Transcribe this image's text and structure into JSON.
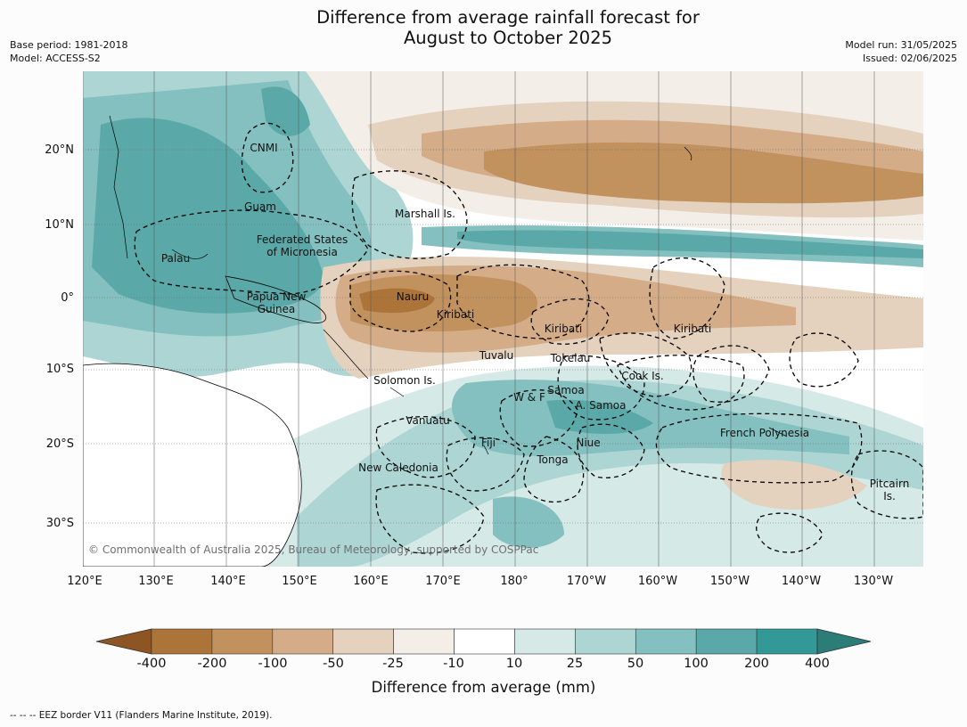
{
  "title_line1": "Difference from average rainfall forecast for",
  "title_line2": "August to October 2025",
  "base_period": "Base period: 1981-2018",
  "model": "Model: ACCESS-S2",
  "model_run": "Model run: 31/05/2025",
  "issued": "Issued: 02/06/2025",
  "copyright": "© Commonwealth of Australia 2025, Bureau of Meteorology, supported by COSPPac",
  "lat_labels": [
    "20°N",
    "10°N",
    "0°",
    "10°S",
    "20°S",
    "30°S"
  ],
  "lon_labels": [
    "120°E",
    "130°E",
    "140°E",
    "150°E",
    "160°E",
    "170°E",
    "180°",
    "170°W",
    "160°W",
    "150°W",
    "140°W",
    "130°W"
  ],
  "places": {
    "cnmi": "CNMI",
    "guam": "Guam",
    "marshall": "Marshall Is.",
    "fsm_1": "Federated States",
    "fsm_2": "of Micronesia",
    "palau": "Palau",
    "png_1": "Papua New",
    "png_2": "Guinea",
    "nauru": "Nauru",
    "kiribati_w": "Kiribati",
    "kiribati_c": "Kiribati",
    "kiribati_e": "Kiribati",
    "tuvalu": "Tuvalu",
    "tokelau": "Tokelau",
    "solomon": "Solomon Is.",
    "cook": "Cook Is.",
    "wf": "W & F",
    "samoa": "Samoa",
    "asamoa": "A. Samoa",
    "vanuatu": "Vanuatu",
    "fiji": "Fiji",
    "niue": "Niue",
    "tonga": "Tonga",
    "frenchpoly": "French Polynesia",
    "newcal": "New Caledonia",
    "pitcairn_1": "Pitcairn",
    "pitcairn_2": "Is."
  },
  "colorbar": {
    "ticks": [
      "-400",
      "-200",
      "-100",
      "-50",
      "-25",
      "-10",
      "10",
      "25",
      "50",
      "100",
      "200",
      "400"
    ],
    "colors": [
      "#8c5523",
      "#ad7439",
      "#c1915e",
      "#d4ad88",
      "#e4d2bf",
      "#f3eee7",
      "#ffffff",
      "#d5e9e7",
      "#acd5d3",
      "#84c0bf",
      "#5aa9a8",
      "#339996",
      "#2c7c77"
    ],
    "title": "Difference from average (mm)"
  },
  "footnote": "--  --  -- EEZ border V11 (Flanders Marine Institute, 2019)."
}
